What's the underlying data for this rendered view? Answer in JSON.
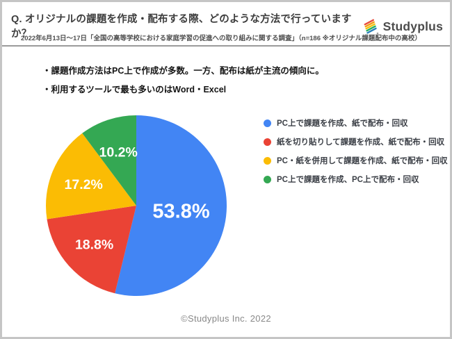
{
  "header": {
    "title": "Q. オリジナルの課題を作成・配布する際、どのような方法で行っていますか？",
    "subtitle": "2022年6月13日～17日「全国の高等学校における家庭学習の促進への取り組みに関する調査」（n=186 ※オリジナル課題配布中の高校）",
    "logo_text": "Studyplus"
  },
  "insights": {
    "line1": "・課題作成方法はPC上で作成が多数。一方、配布は紙が主流の傾向に。",
    "line2": "・利用するツールで最も多いのはWord・Excel"
  },
  "chart_data": {
    "type": "pie",
    "categories": [
      "PC上で課題を作成、紙で配布・回収",
      "紙を切り貼りして課題を作成、紙で配布・回収",
      "PC・紙を併用して課題を作成、紙で配布・回収",
      "PC上で課題を作成、PC上で配布・回収"
    ],
    "values": [
      53.8,
      18.8,
      17.2,
      10.2
    ],
    "labels": [
      "53.8%",
      "18.8%",
      "17.2%",
      "10.2%"
    ],
    "colors": [
      "#4285F4",
      "#EA4335",
      "#FBBC04",
      "#34A853"
    ],
    "label_color": "#ffffff",
    "start_angle_deg": 0,
    "direction": "clockwise",
    "legend_position": "right"
  },
  "logo_icon": {
    "stripe_colors": [
      "#e74c3c",
      "#f39c12",
      "#f1c40f",
      "#27ae60",
      "#2980b9"
    ],
    "tip_color": "#9a9a9a"
  },
  "footer": {
    "copyright": "©Studyplus Inc. 2022"
  }
}
